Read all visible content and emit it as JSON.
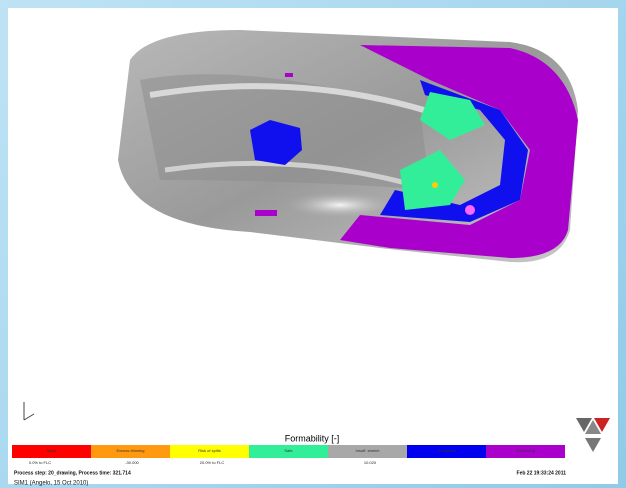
{
  "legend": {
    "title": "Formability [-]",
    "segments": [
      {
        "label": "Splits",
        "color": "#ff0000"
      },
      {
        "label": "Excess thinning",
        "color": "#ff9a10"
      },
      {
        "label": "Risk of splits",
        "color": "#ffff00"
      },
      {
        "label": "Safe",
        "color": "#33ee99"
      },
      {
        "label": "Insuff. stretch",
        "color": "#a8a8a8"
      },
      {
        "label": "Compress",
        "color": "#0000ee"
      },
      {
        "label": "Thickening",
        "color": "#aa00cc"
      }
    ],
    "scale_labels": [
      "0.0% to FLC",
      "-30.000",
      "20.0% to FLC",
      "10.020"
    ]
  },
  "status": {
    "process": "Process step: 20_drawing, Process time: 321.714",
    "timestamp": "Feb 22 19:33:24 2011",
    "simulation": "SIM1 (Angelo, 15 Oct 2010)"
  }
}
